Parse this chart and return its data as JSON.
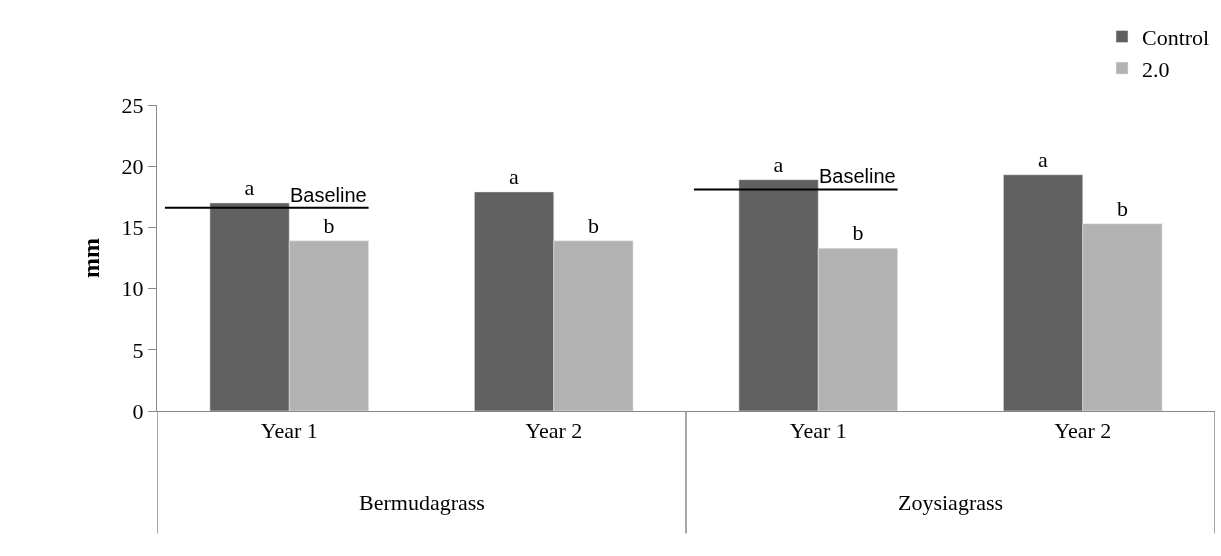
{
  "chart_data": {
    "type": "bar",
    "categories": [
      "Year 1",
      "Year 2",
      "Year 1",
      "Year 2"
    ],
    "ylabel": "mm",
    "ylim": [
      0,
      25
    ],
    "yticks": [
      0,
      5,
      10,
      15,
      20,
      25
    ],
    "legend": "top right",
    "series": [
      {
        "name": "Control",
        "color": "#606060",
        "values": [
          17.0,
          17.9,
          18.9,
          19.3
        ],
        "value_labels": [
          "a",
          "a",
          "a",
          "a"
        ]
      },
      {
        "name": "2.0",
        "color": "#b2b2b2",
        "values": [
          13.9,
          13.9,
          13.3,
          15.3
        ],
        "value_labels": [
          "b",
          "b",
          "b",
          "b"
        ]
      }
    ],
    "ref_lines": [
      {
        "axis": "y",
        "value": 16.6,
        "label": "Baseline",
        "color": "#000000"
      },
      {
        "axis": "y",
        "value": 18.1,
        "label": "Baseline",
        "color": "#000000"
      }
    ],
    "annotations": [
      "Bermudagrass",
      "Zoysiagrass"
    ]
  }
}
